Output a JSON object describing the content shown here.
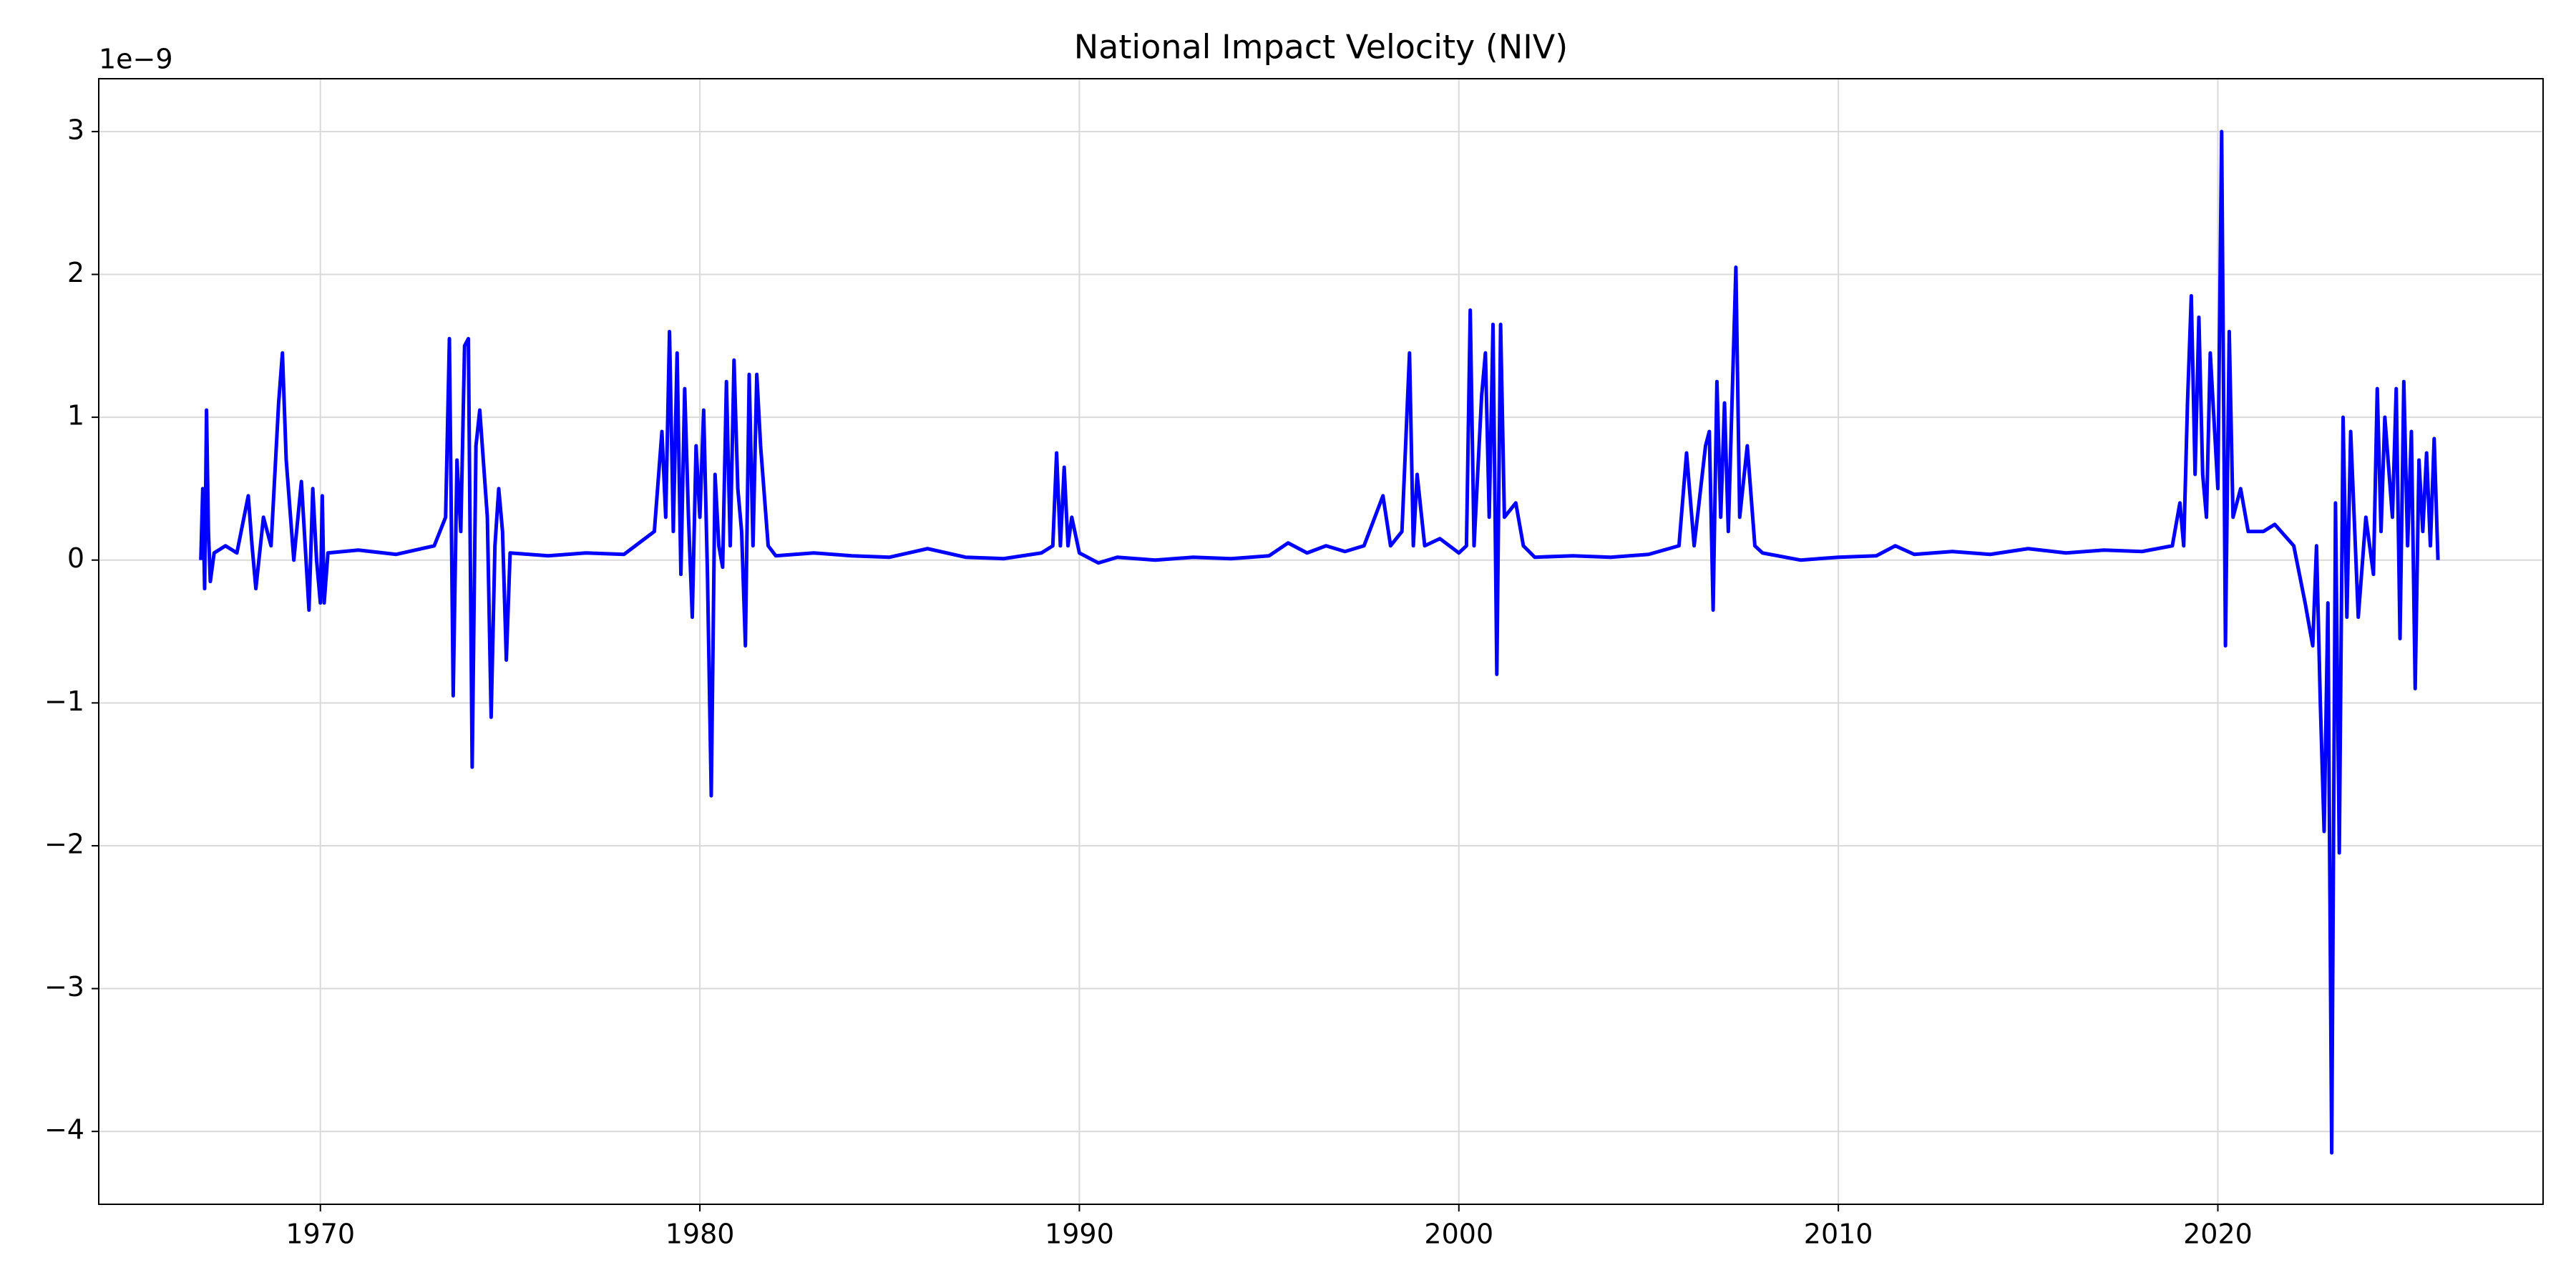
{
  "chart_data": {
    "type": "line",
    "title": "National Impact Velocity (NIV)",
    "y_offset_label": "1e−9",
    "x": [
      1966.85,
      1966.9,
      1966.95,
      1967.0,
      1967.05,
      1967.1,
      1967.2,
      1967.5,
      1967.8,
      1968.1,
      1968.2,
      1968.3,
      1968.5,
      1968.7,
      1968.9,
      1969.0,
      1969.1,
      1969.3,
      1969.5,
      1969.6,
      1969.7,
      1969.8,
      1969.9,
      1970.0,
      1970.05,
      1970.1,
      1970.2,
      1971.0,
      1972.0,
      1973.0,
      1973.3,
      1973.4,
      1973.5,
      1973.6,
      1973.7,
      1973.8,
      1973.9,
      1974.0,
      1974.1,
      1974.2,
      1974.4,
      1974.5,
      1974.6,
      1974.7,
      1974.8,
      1974.9,
      1975.0,
      1976.0,
      1977.0,
      1978.0,
      1978.8,
      1979.0,
      1979.1,
      1979.2,
      1979.3,
      1979.4,
      1979.5,
      1979.6,
      1979.7,
      1979.8,
      1979.9,
      1980.0,
      1980.1,
      1980.2,
      1980.3,
      1980.4,
      1980.5,
      1980.6,
      1980.7,
      1980.8,
      1980.9,
      1981.0,
      1981.1,
      1981.2,
      1981.3,
      1981.4,
      1981.5,
      1981.6,
      1981.8,
      1982.0,
      1983.0,
      1984.0,
      1985.0,
      1986.0,
      1987.0,
      1988.0,
      1989.0,
      1989.3,
      1989.4,
      1989.5,
      1989.6,
      1989.7,
      1989.8,
      1990.0,
      1990.5,
      1991.0,
      1992.0,
      1993.0,
      1994.0,
      1995.0,
      1995.5,
      1996.0,
      1996.5,
      1997.0,
      1997.5,
      1998.0,
      1998.2,
      1998.5,
      1998.7,
      1998.8,
      1998.9,
      1999.1,
      1999.5,
      2000.0,
      2000.2,
      2000.3,
      2000.4,
      2000.6,
      2000.7,
      2000.8,
      2000.9,
      2001.0,
      2001.1,
      2001.2,
      2001.5,
      2001.7,
      2002.0,
      2003.0,
      2004.0,
      2005.0,
      2005.8,
      2006.0,
      2006.2,
      2006.5,
      2006.6,
      2006.7,
      2006.8,
      2006.9,
      2007.0,
      2007.1,
      2007.3,
      2007.4,
      2007.6,
      2007.8,
      2008.0,
      2009.0,
      2010.0,
      2011.0,
      2011.5,
      2012.0,
      2013.0,
      2014.0,
      2015.0,
      2016.0,
      2017.0,
      2018.0,
      2018.8,
      2019.0,
      2019.1,
      2019.2,
      2019.3,
      2019.4,
      2019.5,
      2019.6,
      2019.7,
      2019.8,
      2020.0,
      2020.1,
      2020.2,
      2020.3,
      2020.4,
      2020.6,
      2020.8,
      2021.2,
      2021.5,
      2022.0,
      2022.3,
      2022.5,
      2022.6,
      2022.7,
      2022.8,
      2022.9,
      2023.0,
      2023.1,
      2023.2,
      2023.3,
      2023.4,
      2023.5,
      2023.7,
      2023.9,
      2024.1,
      2024.2,
      2024.3,
      2024.4,
      2024.6,
      2024.7,
      2024.8,
      2024.9,
      2025.0,
      2025.1,
      2025.2,
      2025.3,
      2025.4,
      2025.5,
      2025.6,
      2025.7,
      2025.8
    ],
    "values": [
      0.0,
      0.5,
      -0.2,
      1.05,
      0.2,
      -0.15,
      0.05,
      0.1,
      0.05,
      0.45,
      0.1,
      -0.2,
      0.3,
      0.1,
      1.1,
      1.45,
      0.7,
      0.0,
      0.55,
      0.1,
      -0.35,
      0.5,
      0.0,
      -0.3,
      0.45,
      -0.3,
      0.05,
      0.07,
      0.04,
      0.1,
      0.3,
      1.55,
      -0.95,
      0.7,
      0.2,
      1.5,
      1.55,
      -1.45,
      0.8,
      1.05,
      0.3,
      -1.1,
      0.1,
      0.5,
      0.2,
      -0.7,
      0.05,
      0.03,
      0.05,
      0.04,
      0.2,
      0.9,
      0.3,
      1.6,
      0.2,
      1.45,
      -0.1,
      1.2,
      0.3,
      -0.4,
      0.8,
      0.3,
      1.05,
      -0.1,
      -1.65,
      0.6,
      0.1,
      -0.05,
      1.25,
      0.1,
      1.4,
      0.5,
      0.2,
      -0.6,
      1.3,
      0.1,
      1.3,
      0.8,
      0.1,
      0.03,
      0.05,
      0.03,
      0.02,
      0.08,
      0.02,
      0.01,
      0.05,
      0.1,
      0.75,
      0.1,
      0.65,
      0.1,
      0.3,
      0.05,
      -0.02,
      0.02,
      0.0,
      0.02,
      0.01,
      0.03,
      0.12,
      0.05,
      0.1,
      0.06,
      0.1,
      0.45,
      0.1,
      0.2,
      1.45,
      0.1,
      0.6,
      0.1,
      0.15,
      0.05,
      0.1,
      1.75,
      0.1,
      1.15,
      1.45,
      0.3,
      1.65,
      -0.8,
      1.65,
      0.3,
      0.4,
      0.1,
      0.02,
      0.03,
      0.02,
      0.04,
      0.1,
      0.75,
      0.1,
      0.8,
      0.9,
      -0.35,
      1.25,
      0.3,
      1.1,
      0.2,
      2.05,
      0.3,
      0.8,
      0.1,
      0.05,
      0.0,
      0.02,
      0.03,
      0.1,
      0.04,
      0.06,
      0.04,
      0.08,
      0.05,
      0.07,
      0.06,
      0.1,
      0.4,
      0.1,
      1.1,
      1.85,
      0.6,
      1.7,
      0.6,
      0.3,
      1.45,
      0.5,
      3.0,
      -0.6,
      1.6,
      0.3,
      0.5,
      0.2,
      0.2,
      0.25,
      0.1,
      -0.3,
      -0.6,
      0.1,
      -1.0,
      -1.9,
      -0.3,
      -4.15,
      0.4,
      -2.05,
      1.0,
      -0.4,
      0.9,
      -0.4,
      0.3,
      -0.1,
      1.2,
      0.2,
      1.0,
      0.3,
      1.2,
      -0.55,
      1.25,
      0.1,
      0.9,
      -0.9,
      0.7,
      0.2,
      0.75,
      0.1,
      0.85,
      0.0
    ],
    "color": "#0000ff",
    "xlim": [
      1964.16,
      2028.57
    ],
    "xticks": [
      1970,
      1980,
      1990,
      2000,
      2010,
      2020
    ],
    "ylim": [
      -4.51,
      3.37
    ],
    "yticks": [
      {
        "value": -4,
        "label": "−4"
      },
      {
        "value": -3,
        "label": "−3"
      },
      {
        "value": -2,
        "label": "−2"
      },
      {
        "value": -1,
        "label": "−1"
      },
      0,
      1,
      2,
      3
    ],
    "grid": true
  }
}
